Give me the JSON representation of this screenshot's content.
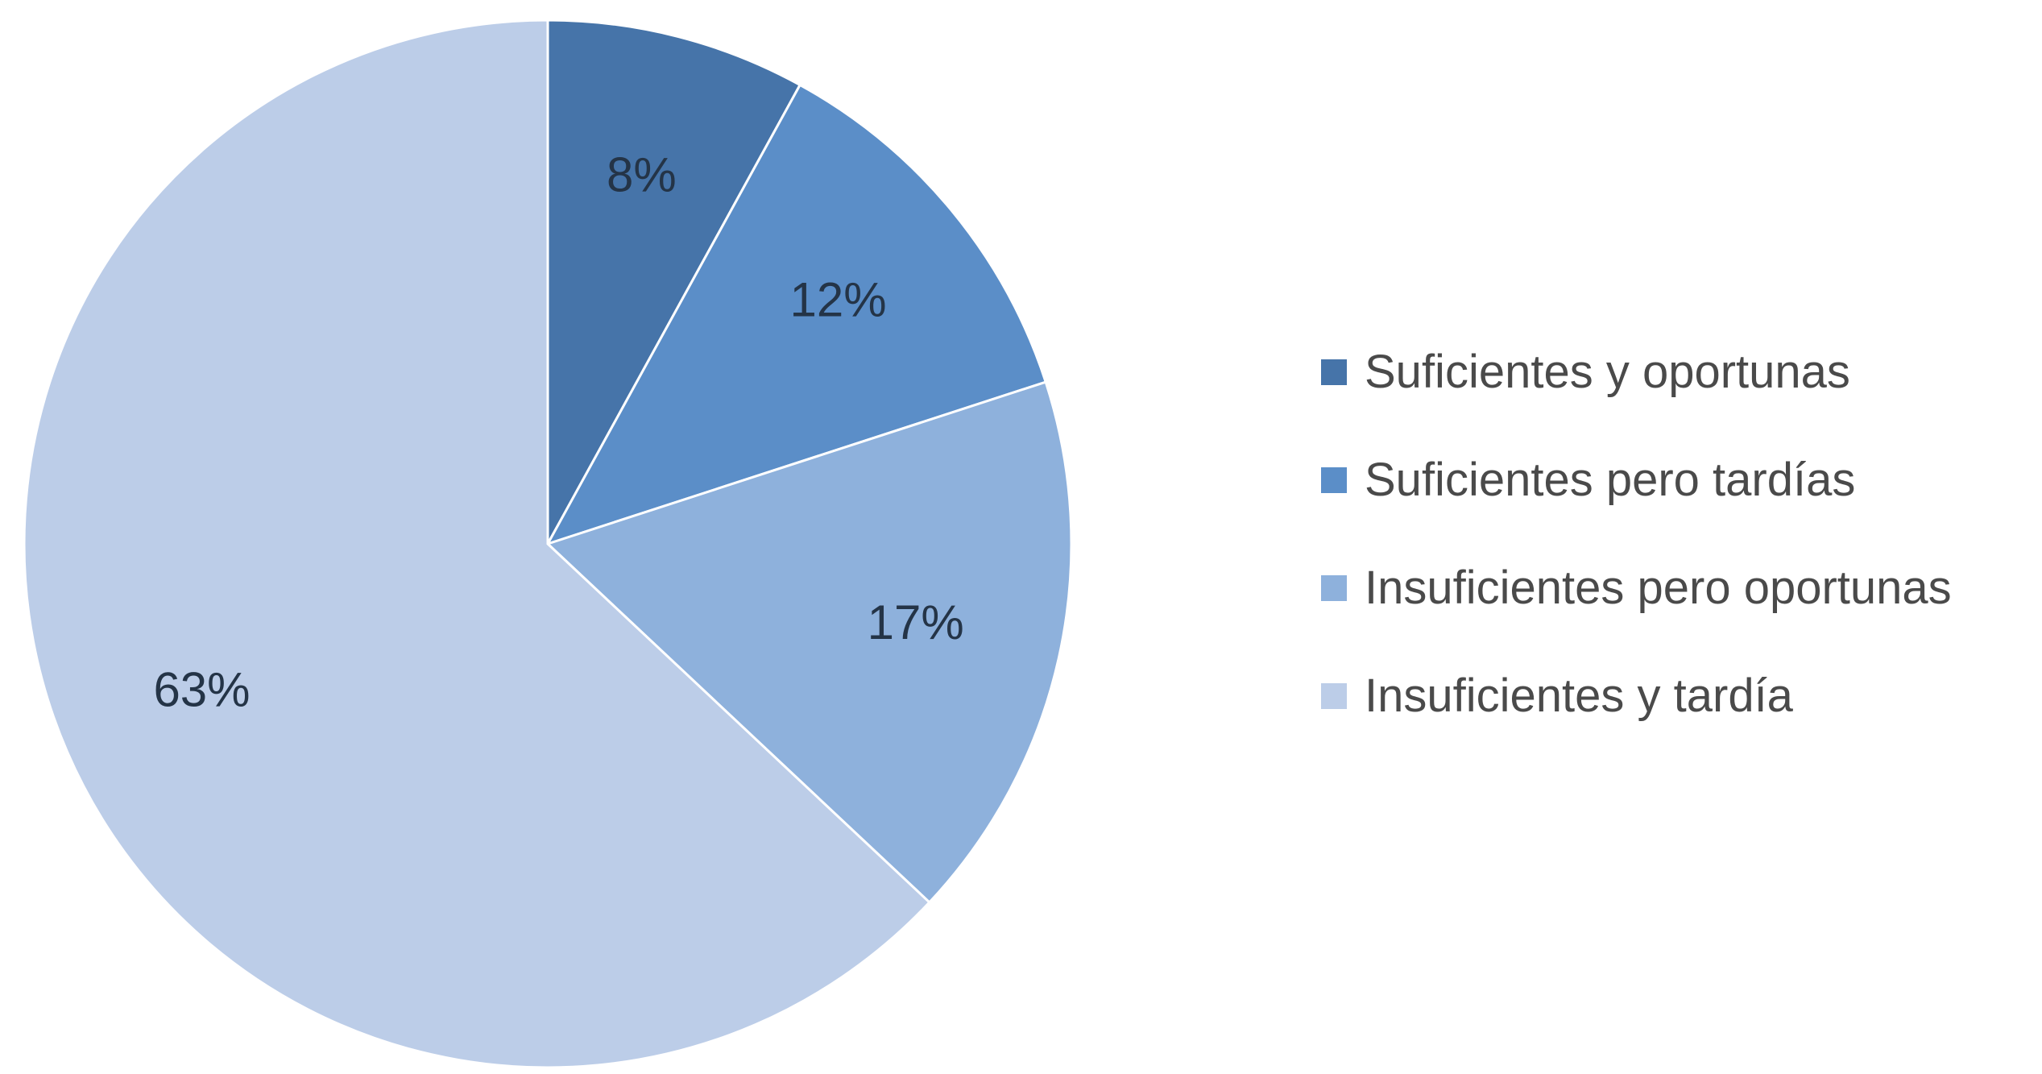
{
  "chart_data": {
    "type": "pie",
    "title": "",
    "start_angle_deg": 0,
    "direction": "clockwise",
    "slices": [
      {
        "name": "Suficientes y oportunas",
        "value": 8,
        "label": "8%",
        "color": "#4674a9"
      },
      {
        "name": "Suficientes pero tardías",
        "value": 12,
        "label": "12%",
        "color": "#5b8ec8"
      },
      {
        "name": "Insuficientes pero oportunas",
        "value": 17,
        "label": "17%",
        "color": "#8eb1dc"
      },
      {
        "name": "Insuficientes y tardía",
        "value": 63,
        "label": "63%",
        "color": "#bccde8"
      }
    ],
    "legend_position": "right"
  }
}
